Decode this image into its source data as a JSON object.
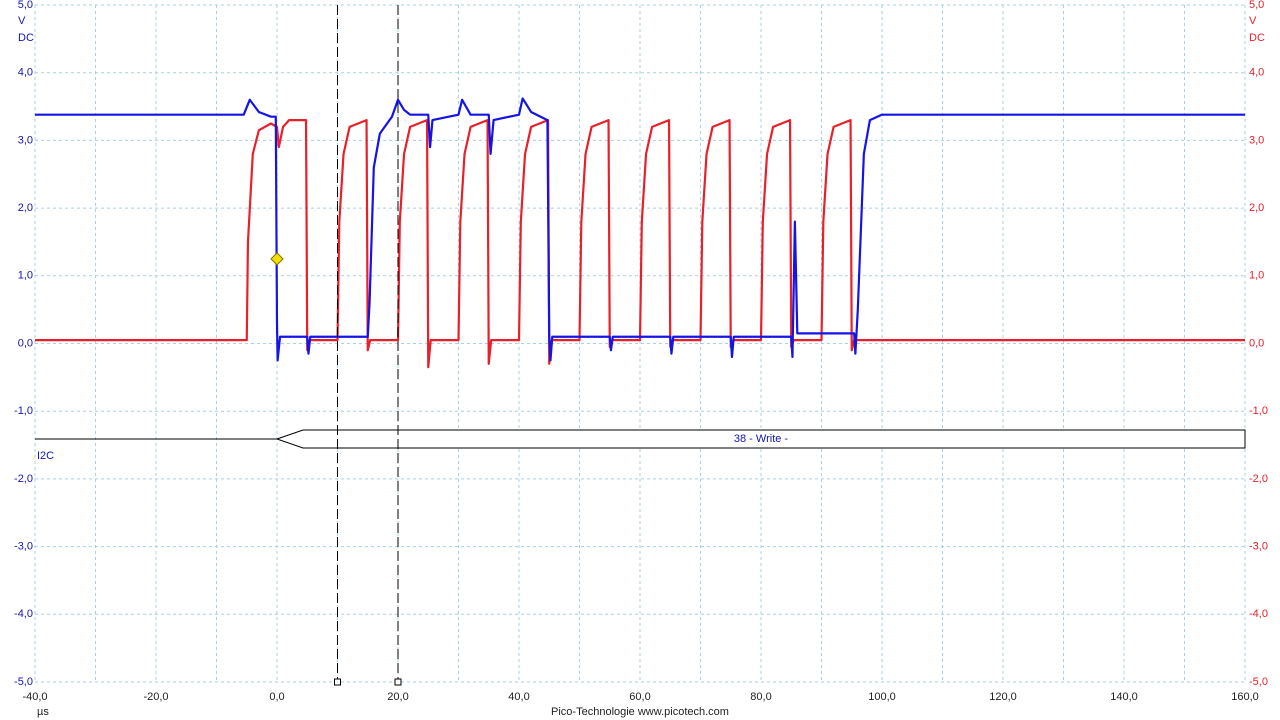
{
  "chart_data": {
    "type": "line",
    "x_unit": "µs",
    "y_unit": "V",
    "y_coupling": "DC",
    "y2_unit": "V",
    "y2_coupling": "DC",
    "footer": "Pico-Technologie  www.picotech.com",
    "xlim": [
      -40,
      160
    ],
    "ylim": [
      -5,
      5
    ],
    "y2lim": [
      -5,
      5
    ],
    "xticks": [
      {
        "value": -40,
        "label": "-40,0"
      },
      {
        "value": -20,
        "label": "-20,0"
      },
      {
        "value": 0,
        "label": "0,0"
      },
      {
        "value": 20,
        "label": "20,0"
      },
      {
        "value": 40,
        "label": "40,0"
      },
      {
        "value": 60,
        "label": "60,0"
      },
      {
        "value": 80,
        "label": "80,0"
      },
      {
        "value": 100,
        "label": "100,0"
      },
      {
        "value": 120,
        "label": "120,0"
      },
      {
        "value": 140,
        "label": "140,0"
      },
      {
        "value": 160,
        "label": "160,0"
      }
    ],
    "xgrid": [
      -30,
      -10,
      10,
      30,
      50,
      70,
      90,
      110,
      130,
      150
    ],
    "yticks": [
      {
        "value": 5,
        "label": "5,0"
      },
      {
        "value": 4,
        "label": "4,0"
      },
      {
        "value": 3,
        "label": "3,0"
      },
      {
        "value": 2,
        "label": "2,0"
      },
      {
        "value": 1,
        "label": "1,0"
      },
      {
        "value": 0,
        "label": "0,0"
      },
      {
        "value": -1,
        "label": "-1,0"
      },
      {
        "value": -2,
        "label": "-2,0"
      },
      {
        "value": -3,
        "label": "-3,0"
      },
      {
        "value": -4,
        "label": "-4,0"
      },
      {
        "value": -5,
        "label": "-5,0"
      }
    ],
    "y2ticks": [
      {
        "value": 5,
        "label": "5,0"
      },
      {
        "value": 4,
        "label": "4,0"
      },
      {
        "value": 3,
        "label": "3,0"
      },
      {
        "value": 2,
        "label": "2,0"
      },
      {
        "value": 1,
        "label": "1,0"
      },
      {
        "value": 0,
        "label": "0,0"
      },
      {
        "value": -1,
        "label": "-1,0"
      },
      {
        "value": -2,
        "label": "-2,0"
      },
      {
        "value": -3,
        "label": "-3,0"
      },
      {
        "value": -4,
        "label": "-4,0"
      },
      {
        "value": -5,
        "label": "-5,0"
      }
    ],
    "grid": true,
    "cursors": [
      10,
      20
    ],
    "trigger": {
      "x": 0,
      "y": 1.25,
      "color": "#f0e000"
    },
    "decode": {
      "name": "I2C",
      "packet": "38 - Write -",
      "start": 0
    },
    "series": [
      {
        "color": "#1414e6",
        "x": [
          -40,
          -5.5,
          -4.5,
          -3,
          -1,
          -0.2,
          0,
          0.1,
          0.5,
          5,
          5.2,
          5.5,
          15,
          15.3,
          16,
          17,
          19,
          20,
          21,
          22,
          25,
          25.3,
          25.7,
          30,
          30.6,
          32,
          35,
          35.3,
          35.8,
          40,
          40.6,
          42,
          44.7,
          45,
          45.2,
          45.5,
          55,
          55.2,
          55.5,
          65,
          65.2,
          65.5,
          75,
          75.2,
          75.5,
          85,
          85.2,
          85.6,
          86,
          95.4,
          95.6,
          96,
          97,
          98,
          100,
          160
        ],
        "values": [
          3.38,
          3.38,
          3.6,
          3.42,
          3.35,
          3.35,
          0.3,
          -0.25,
          0.1,
          0.1,
          -0.15,
          0.1,
          0.1,
          0.6,
          2.6,
          3.1,
          3.35,
          3.6,
          3.45,
          3.38,
          3.38,
          2.9,
          3.3,
          3.38,
          3.6,
          3.38,
          3.38,
          2.8,
          3.3,
          3.38,
          3.62,
          3.42,
          3.3,
          0.1,
          -0.25,
          0.1,
          0.1,
          -0.1,
          0.1,
          0.1,
          -0.15,
          0.1,
          0.1,
          -0.2,
          0.1,
          0.1,
          -0.2,
          1.8,
          0.15,
          0.15,
          -0.15,
          0.5,
          2.8,
          3.3,
          3.38,
          3.38
        ]
      },
      {
        "color": "#e8202a",
        "axis": "y2",
        "x": [
          -40,
          -5,
          -4.8,
          -4,
          -3,
          -1,
          0,
          0.3,
          1,
          2,
          4.8,
          5,
          5.4,
          10,
          10.3,
          11,
          12,
          14.8,
          15,
          15.4,
          20,
          20.3,
          21,
          22,
          24.8,
          25,
          25.4,
          30,
          30.3,
          31,
          32,
          34.8,
          35,
          35.4,
          40,
          40.3,
          41,
          42,
          44.8,
          45,
          45.4,
          50,
          50.3,
          51,
          52,
          54.8,
          55,
          55.4,
          60,
          60.3,
          61,
          62,
          64.8,
          65,
          65.4,
          70,
          70.3,
          71,
          72,
          74.8,
          75,
          75.4,
          80,
          80.3,
          81,
          82,
          84.8,
          85,
          85.4,
          90,
          90.3,
          91,
          92,
          94.8,
          95,
          95.4,
          160
        ],
        "values": [
          0.05,
          0.05,
          1.5,
          2.8,
          3.15,
          3.25,
          3.2,
          2.9,
          3.2,
          3.3,
          3.3,
          -0.1,
          0.05,
          0.05,
          1.8,
          2.8,
          3.2,
          3.3,
          -0.1,
          0.05,
          0.05,
          1.8,
          2.8,
          3.2,
          3.3,
          -0.35,
          0.05,
          0.05,
          1.8,
          2.8,
          3.2,
          3.3,
          -0.3,
          0.05,
          0.05,
          1.8,
          2.8,
          3.2,
          3.3,
          -0.3,
          0.05,
          0.05,
          1.8,
          2.8,
          3.2,
          3.3,
          -0.05,
          0.05,
          0.05,
          1.8,
          2.8,
          3.2,
          3.3,
          -0.05,
          0.05,
          0.05,
          1.8,
          2.8,
          3.2,
          3.3,
          -0.05,
          0.05,
          0.05,
          1.8,
          2.8,
          3.2,
          3.3,
          -0.05,
          0.05,
          0.05,
          1.8,
          2.8,
          3.2,
          3.3,
          -0.1,
          0.05,
          0.05
        ]
      }
    ]
  }
}
